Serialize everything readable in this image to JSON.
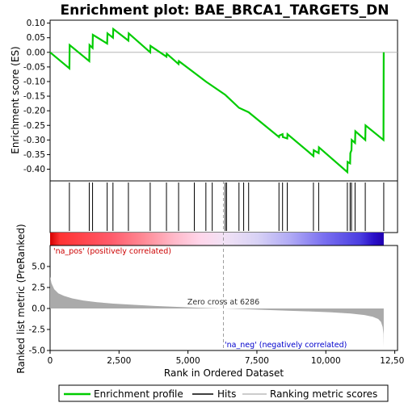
{
  "chart_data": {
    "type": "line",
    "title": "Enrichment plot: BAE_BRCA1_TARGETS_DN",
    "es_panel": {
      "ylabel": "Enrichment score (ES)",
      "ylim": [
        -0.44,
        0.11
      ],
      "yticks": [
        0.1,
        0.05,
        0.0,
        -0.05,
        -0.1,
        -0.15,
        -0.2,
        -0.25,
        -0.3,
        -0.35,
        -0.4
      ],
      "ytick_labels": [
        "0.10",
        "0.05",
        "0.00",
        "-0.05",
        "-0.10",
        "-0.15",
        "-0.20",
        "-0.25",
        "-0.30",
        "-0.35",
        "-0.40"
      ],
      "line_color": "#00cc00",
      "points": [
        [
          0,
          0.0
        ],
        [
          700,
          -0.055
        ],
        [
          710,
          0.025
        ],
        [
          1420,
          -0.03
        ],
        [
          1430,
          0.025
        ],
        [
          1540,
          0.015
        ],
        [
          1550,
          0.06
        ],
        [
          2070,
          0.03
        ],
        [
          2080,
          0.065
        ],
        [
          2280,
          0.05
        ],
        [
          2290,
          0.08
        ],
        [
          2840,
          0.04
        ],
        [
          2850,
          0.065
        ],
        [
          3630,
          0.0
        ],
        [
          3640,
          0.022
        ],
        [
          4220,
          -0.015
        ],
        [
          4230,
          -0.005
        ],
        [
          4660,
          -0.04
        ],
        [
          4670,
          -0.03
        ],
        [
          5230,
          -0.07
        ],
        [
          5650,
          -0.1
        ],
        [
          6350,
          -0.145
        ],
        [
          6850,
          -0.19
        ],
        [
          7200,
          -0.205
        ],
        [
          8300,
          -0.29
        ],
        [
          8310,
          -0.285
        ],
        [
          8430,
          -0.28
        ],
        [
          8440,
          -0.29
        ],
        [
          8600,
          -0.295
        ],
        [
          8610,
          -0.28
        ],
        [
          9550,
          -0.355
        ],
        [
          9560,
          -0.335
        ],
        [
          9740,
          -0.345
        ],
        [
          9750,
          -0.325
        ],
        [
          10780,
          -0.41
        ],
        [
          10790,
          -0.375
        ],
        [
          10880,
          -0.38
        ],
        [
          10890,
          -0.345
        ],
        [
          10930,
          -0.335
        ],
        [
          10940,
          -0.3
        ],
        [
          11060,
          -0.31
        ],
        [
          11070,
          -0.27
        ],
        [
          11430,
          -0.3
        ],
        [
          11440,
          -0.25
        ],
        [
          12090,
          -0.3
        ],
        [
          12100,
          0.0
        ]
      ]
    },
    "hits": [
      700,
      1420,
      1540,
      2070,
      2280,
      2840,
      3630,
      4220,
      4660,
      5230,
      5650,
      5880,
      6350,
      6400,
      6850,
      7020,
      7200,
      8300,
      8430,
      8600,
      9550,
      9740,
      10780,
      10880,
      10930,
      11060,
      11430,
      12100
    ],
    "rank_panel": {
      "ylabel": "Ranked list metric (PreRanked)",
      "ylim": [
        -5.0,
        7.5
      ],
      "yticks": [
        5.0,
        2.5,
        0.0,
        -2.5,
        -5.0
      ],
      "ytick_labels": [
        "5.0",
        "2.5",
        "0.0",
        "-2.5",
        "-5.0"
      ],
      "profile": [
        [
          0,
          3.8
        ],
        [
          50,
          3.0
        ],
        [
          150,
          2.3
        ],
        [
          300,
          1.8
        ],
        [
          500,
          1.5
        ],
        [
          800,
          1.2
        ],
        [
          1200,
          0.95
        ],
        [
          1700,
          0.75
        ],
        [
          2300,
          0.58
        ],
        [
          3000,
          0.44
        ],
        [
          3800,
          0.3
        ],
        [
          4600,
          0.19
        ],
        [
          5400,
          0.09
        ],
        [
          6286,
          0.0
        ],
        [
          7000,
          -0.08
        ],
        [
          7800,
          -0.17
        ],
        [
          8600,
          -0.26
        ],
        [
          9400,
          -0.35
        ],
        [
          10200,
          -0.46
        ],
        [
          10900,
          -0.6
        ],
        [
          11400,
          -0.78
        ],
        [
          11700,
          -0.98
        ],
        [
          11900,
          -1.25
        ],
        [
          12000,
          -1.6
        ],
        [
          12060,
          -2.2
        ],
        [
          12090,
          -3.0
        ],
        [
          12100,
          -4.6
        ]
      ],
      "pos_label": "'na_pos' (positively correlated)",
      "neg_label": "'na_neg' (negatively correlated)",
      "zero_cross_label": "Zero cross at 6286",
      "zero_cross": 6286
    },
    "xlabel": "Rank in Ordered Dataset",
    "xlim": [
      0,
      12600
    ],
    "xticks": [
      0,
      2500,
      5000,
      7500,
      10000,
      12500
    ],
    "xtick_labels": [
      "0",
      "2,500",
      "5,000",
      "7,500",
      "10,000",
      "12,500"
    ],
    "n_ranks": 12100,
    "legend": [
      {
        "label": "Enrichment profile",
        "color": "#00cc00"
      },
      {
        "label": "Hits",
        "color": "#000000"
      },
      {
        "label": "Ranking metric scores",
        "color": "#bbbbbb"
      }
    ],
    "colors": {
      "pos": "#cc0000",
      "neg": "#0000cc",
      "metric_fill": "#aaaaaa"
    }
  }
}
